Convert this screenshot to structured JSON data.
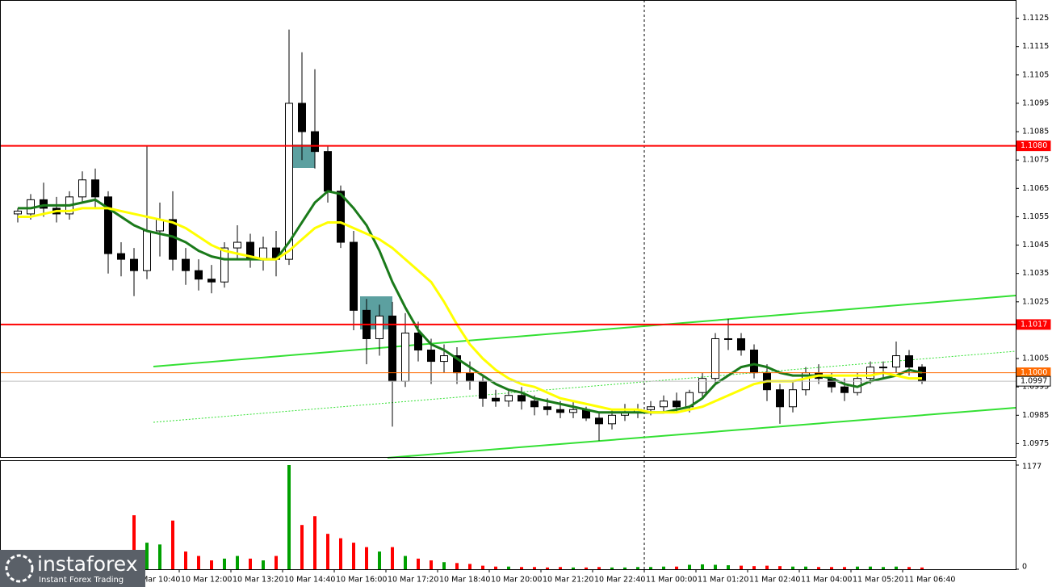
{
  "chart_data": {
    "type": "candlestick",
    "categories": [
      null,
      null,
      null,
      null,
      null,
      null,
      null,
      null,
      null,
      "10 Mar 10:40",
      null,
      null,
      null,
      "10 Mar 12:00",
      null,
      null,
      null,
      "10 Mar 13:20",
      null,
      null,
      null,
      "10 Mar 14:40",
      null,
      null,
      null,
      "10 Mar 16:00",
      null,
      null,
      null,
      "10 Mar 17:20",
      null,
      null,
      null,
      "10 Mar 18:40",
      null,
      null,
      null,
      "10 Mar 20:00",
      null,
      null,
      null,
      "10 Mar 21:20",
      null,
      null,
      null,
      "10 Mar 22:40",
      null,
      null,
      null,
      "11 Mar 00:00",
      null,
      null,
      null,
      "11 Mar 01:20",
      null,
      null,
      null,
      "11 Mar 02:40",
      null,
      null,
      null,
      "11 Mar 04:00",
      null,
      null,
      null,
      "11 Mar 05:20",
      null,
      null,
      null,
      "11 Mar 06:40",
      null
    ],
    "open": [
      1.1056,
      1.1056,
      1.1061,
      1.1058,
      1.1056,
      1.1062,
      1.1068,
      1.1062,
      1.1042,
      1.104,
      1.1036,
      1.105,
      1.1054,
      1.104,
      1.1036,
      1.1033,
      1.1032,
      1.1044,
      1.1046,
      1.104,
      1.1044,
      1.104,
      1.1095,
      1.1085,
      1.1078,
      1.1064,
      1.1046,
      1.1022,
      1.1012,
      1.102,
      1.0997,
      1.1014,
      1.1008,
      1.1004,
      1.1006,
      1.1,
      1.0997,
      1.0991,
      1.099,
      1.0992,
      1.099,
      1.0988,
      1.0987,
      1.0986,
      1.0987,
      1.0984,
      1.0982,
      1.0985,
      1.0986,
      1.0987,
      1.0988,
      1.099,
      1.0988,
      1.0993,
      1.0998,
      1.1012,
      1.1012,
      1.1008,
      1.1,
      1.0994,
      1.0988,
      1.0994,
      1.1,
      1.0998,
      1.0995,
      1.0993,
      1.0998,
      1.1002,
      1.1002,
      1.1006,
      1.1002
    ],
    "high": [
      1.1058,
      1.1063,
      1.1067,
      1.1062,
      1.1064,
      1.1071,
      1.1072,
      1.1064,
      1.1046,
      1.1044,
      1.108,
      1.106,
      1.1064,
      1.1044,
      1.104,
      1.1038,
      1.1046,
      1.1052,
      1.1049,
      1.1048,
      1.105,
      1.1121,
      1.1113,
      1.1107,
      1.108,
      1.1066,
      1.105,
      1.1026,
      1.1024,
      1.1025,
      1.1021,
      1.1018,
      1.1012,
      1.101,
      1.1009,
      1.1004,
      1.0999,
      1.0994,
      1.0994,
      1.0995,
      1.0992,
      1.0991,
      1.099,
      1.099,
      1.0988,
      1.0986,
      1.0987,
      1.0989,
      1.0989,
      1.099,
      1.0992,
      1.0993,
      1.0994,
      1.1,
      1.1014,
      1.1019,
      1.1014,
      1.101,
      1.1003,
      1.0996,
      1.0997,
      1.1002,
      1.1003,
      1.1,
      1.0998,
      1.1,
      1.1004,
      1.1004,
      1.1011,
      1.1008,
      1.1003
    ],
    "low": [
      1.1053,
      1.1054,
      1.1055,
      1.1053,
      1.1054,
      1.106,
      1.1058,
      1.1035,
      1.1034,
      1.1027,
      1.1033,
      1.1041,
      1.1036,
      1.1031,
      1.1029,
      1.1028,
      1.103,
      1.104,
      1.1037,
      1.1036,
      1.1034,
      1.1038,
      1.1075,
      1.1072,
      1.106,
      1.1044,
      1.1015,
      1.1003,
      1.1006,
      1.0981,
      1.0995,
      1.1004,
      1.0996,
      1.1,
      1.0996,
      1.0994,
      1.0988,
      1.0988,
      1.0988,
      1.0987,
      1.0985,
      1.0985,
      1.0984,
      1.0984,
      1.0983,
      1.0976,
      1.098,
      1.0983,
      1.0984,
      1.0985,
      1.0986,
      1.0986,
      1.0986,
      1.0991,
      1.0996,
      1.1008,
      1.1006,
      1.0998,
      1.099,
      1.0982,
      1.0986,
      1.0992,
      1.0996,
      1.0993,
      1.099,
      1.0992,
      1.0996,
      1.0998,
      1.1,
      1.0999,
      1.0996
    ],
    "close": [
      1.1057,
      1.1061,
      1.1058,
      1.1056,
      1.1062,
      1.1068,
      1.1062,
      1.1042,
      1.104,
      1.1036,
      1.105,
      1.1054,
      1.104,
      1.1036,
      1.1033,
      1.1032,
      1.1044,
      1.1046,
      1.104,
      1.1044,
      1.104,
      1.1095,
      1.1085,
      1.1078,
      1.1064,
      1.1046,
      1.1022,
      1.1012,
      1.102,
      1.0997,
      1.1014,
      1.1008,
      1.1004,
      1.1006,
      1.1,
      1.0997,
      1.0991,
      1.099,
      1.0992,
      1.099,
      1.0988,
      1.0987,
      1.0986,
      1.0987,
      1.0984,
      1.0982,
      1.0985,
      1.0986,
      1.0987,
      1.0988,
      1.099,
      1.0988,
      1.0993,
      1.0998,
      1.1012,
      1.1012,
      1.1008,
      1.1,
      1.0994,
      1.0988,
      1.0994,
      1.1,
      1.0998,
      1.0995,
      1.0993,
      1.0998,
      1.1002,
      1.1002,
      1.1006,
      1.1002,
      1.0997
    ],
    "ma": [
      {
        "color": "#1a7a1a",
        "values": [
          1.1058,
          1.1058,
          1.1059,
          1.1059,
          1.1059,
          1.106,
          1.1061,
          1.1058,
          1.1055,
          1.1052,
          1.105,
          1.1049,
          1.1048,
          1.1046,
          1.1043,
          1.1041,
          1.104,
          1.104,
          1.104,
          1.104,
          1.104,
          1.1046,
          1.1053,
          1.106,
          1.1064,
          1.1063,
          1.1058,
          1.1052,
          1.1043,
          1.1032,
          1.1023,
          1.1015,
          1.101,
          1.1008,
          1.1005,
          1.1002,
          1.0999,
          1.0996,
          1.0994,
          1.0993,
          1.0991,
          1.099,
          1.0989,
          1.0988,
          1.0987,
          1.0986,
          1.0986,
          1.0986,
          1.0986,
          1.0986,
          1.0986,
          1.0987,
          1.0988,
          1.0991,
          1.0996,
          1.0999,
          1.1002,
          1.1003,
          1.1002,
          1.1,
          1.0999,
          1.0999,
          1.0999,
          1.0998,
          1.0996,
          1.0995,
          1.0997,
          1.0998,
          1.0999,
          1.1001,
          1.1
        ]
      },
      {
        "color": "#ffff00",
        "values": [
          1.1055,
          1.1055,
          1.1056,
          1.1057,
          1.1057,
          1.1058,
          1.1058,
          1.1058,
          1.1057,
          1.1056,
          1.1055,
          1.1054,
          1.1053,
          1.1051,
          1.1048,
          1.1045,
          1.1043,
          1.1042,
          1.1041,
          1.104,
          1.104,
          1.1043,
          1.1047,
          1.1051,
          1.1053,
          1.1053,
          1.1051,
          1.1049,
          1.1047,
          1.1044,
          1.104,
          1.1036,
          1.1032,
          1.1025,
          1.1017,
          1.101,
          1.1005,
          1.1001,
          1.0998,
          1.0996,
          1.0995,
          1.0993,
          1.0991,
          1.099,
          1.0989,
          1.0988,
          1.0987,
          1.0987,
          1.0987,
          1.0986,
          1.0986,
          1.0986,
          1.0987,
          1.0988,
          1.099,
          1.0992,
          1.0994,
          1.0996,
          1.0997,
          1.0997,
          1.0997,
          1.0998,
          1.0999,
          1.0999,
          1.0999,
          1.0999,
          1.0999,
          1.1,
          1.0999,
          1.0998,
          1.0998
        ]
      }
    ],
    "ylim": [
      1.097,
      1.113
    ],
    "yticks": [
      1.1125,
      1.1115,
      1.1105,
      1.1095,
      1.1085,
      1.1075,
      1.1065,
      1.1055,
      1.1045,
      1.1035,
      1.1025,
      1.1005,
      1.0995,
      1.0985,
      1.0975
    ],
    "levels": [
      {
        "value": 1.108,
        "label": "1.1080",
        "color": "#ff0000"
      },
      {
        "value": 1.1017,
        "label": "1.1017",
        "color": "#ff0000"
      },
      {
        "value": 1.1,
        "label": "1.1000",
        "color": "#ff6a00"
      },
      {
        "value": 1.0997,
        "label": "1.0997",
        "color": "#ffffff"
      }
    ],
    "volume": {
      "values": [
        40,
        50,
        45,
        30,
        40,
        60,
        50,
        90,
        70,
        610,
        300,
        280,
        550,
        200,
        150,
        100,
        120,
        150,
        120,
        100,
        150,
        1177,
        500,
        600,
        400,
        350,
        300,
        250,
        200,
        250,
        150,
        120,
        100,
        80,
        70,
        60,
        40,
        30,
        30,
        25,
        25,
        20,
        25,
        20,
        20,
        25,
        20,
        20,
        25,
        25,
        30,
        30,
        50,
        55,
        50,
        45,
        40,
        35,
        40,
        35,
        30,
        30,
        25,
        25,
        25,
        30,
        30,
        25,
        30,
        25,
        20
      ],
      "ylim": [
        0,
        1177
      ],
      "yticks": [
        1177,
        0
      ],
      "up_color": "#00a000",
      "down_color": "#ff0000"
    },
    "grid": false,
    "watermark": {
      "brand": "instaforex",
      "tagline": "Instant Forex Trading"
    }
  }
}
